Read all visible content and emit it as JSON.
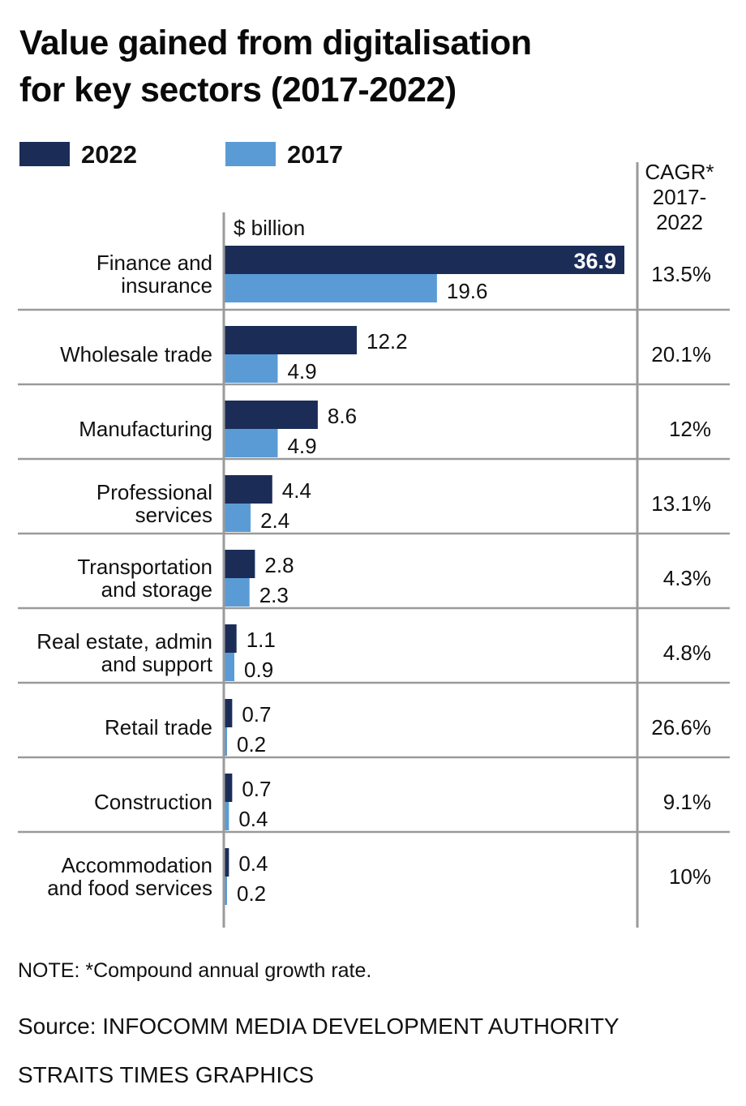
{
  "title_line1": "Value gained from digitalisation",
  "title_line2": "for key sectors (2017-2022)",
  "legend": [
    {
      "label": "2022",
      "color": "#1b2d57"
    },
    {
      "label": "2017",
      "color": "#5b9bd5"
    }
  ],
  "unit_label": "$ billion",
  "cagr_header": [
    "CAGR*",
    "2017-",
    "2022"
  ],
  "note": "NOTE: *Compound annual growth rate.",
  "source": "Source: INFOCOMM MEDIA DEVELOPMENT AUTHORITY",
  "credit": "STRAITS TIMES GRAPHICS",
  "chart_data": {
    "type": "bar",
    "orientation": "horizontal",
    "title": "Value gained from digitalisation for key sectors (2017-2022)",
    "xlabel": "$ billion",
    "ylabel": "",
    "grid": false,
    "legend_position": "top-left",
    "xlim": [
      0,
      36.9
    ],
    "categories": [
      [
        "Finance and",
        "insurance"
      ],
      [
        "Wholesale trade"
      ],
      [
        "Manufacturing"
      ],
      [
        "Professional",
        "services"
      ],
      [
        "Transportation",
        "and storage"
      ],
      [
        "Real estate, admin",
        "and support"
      ],
      [
        "Retail trade"
      ],
      [
        "Construction"
      ],
      [
        "Accommodation",
        "and food services"
      ]
    ],
    "series": [
      {
        "name": "2022",
        "color": "#1b2d57",
        "values": [
          36.9,
          12.2,
          8.6,
          4.4,
          2.8,
          1.1,
          0.7,
          0.7,
          0.4
        ]
      },
      {
        "name": "2017",
        "color": "#5b9bd5",
        "values": [
          19.6,
          4.9,
          4.9,
          2.4,
          2.3,
          0.9,
          0.2,
          0.4,
          0.2
        ]
      }
    ],
    "value_labels_2022": [
      "36.9",
      "12.2",
      "8.6",
      "4.4",
      "2.8",
      "1.1",
      "0.7",
      "0.7",
      "0.4"
    ],
    "value_labels_2017": [
      "19.6",
      "4.9",
      "4.9",
      "2.4",
      "2.3",
      "0.9",
      "0.2",
      "0.4",
      "0.2"
    ],
    "cagr": [
      "13.5%",
      "20.1%",
      "12%",
      "13.1%",
      "4.3%",
      "4.8%",
      "26.6%",
      "9.1%",
      "10%"
    ]
  }
}
